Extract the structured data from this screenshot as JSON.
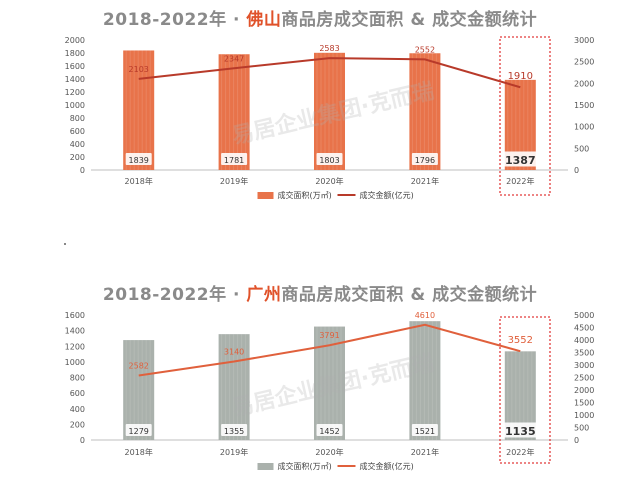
{
  "chart_data": [
    {
      "type": "bar",
      "title": {
        "prefix": "2018-2022年 · ",
        "city": "佛山",
        "suffix": "商品房成交面积 & 成交金额统计"
      },
      "categories": [
        "2018年",
        "2019年",
        "2020年",
        "2021年",
        "2022年"
      ],
      "series": [
        {
          "name": "成交面积(万㎡)",
          "type": "bar",
          "axis": "left",
          "color": "#e8734a",
          "values": [
            1839,
            1781,
            1803,
            1796,
            1387
          ]
        },
        {
          "name": "成交金额(亿元)",
          "type": "line",
          "axis": "right",
          "color": "#b83a2a",
          "values": [
            2103,
            2347,
            2583,
            2552,
            1910
          ]
        }
      ],
      "y_left": {
        "min": 0,
        "max": 2000,
        "ticks": [
          0,
          200,
          400,
          600,
          800,
          1000,
          1200,
          1400,
          1600,
          1800,
          2000
        ]
      },
      "y_right": {
        "min": 0,
        "max": 3000,
        "ticks": [
          0,
          500,
          1000,
          1500,
          2000,
          2500,
          3000
        ]
      },
      "highlight_category": "2022年",
      "highlight_color": "#e23b3b",
      "bar_label_color": "#333333",
      "line_label_color": "#b83a2a",
      "watermark": "易居企业集团·克而瑞",
      "legend_position": "bottom"
    },
    {
      "type": "bar",
      "title": {
        "prefix": "2018-2022年 · ",
        "city": "广州",
        "suffix": "商品房成交面积 & 成交金额统计"
      },
      "categories": [
        "2018年",
        "2019年",
        "2020年",
        "2021年",
        "2022年"
      ],
      "series": [
        {
          "name": "成交面积(万㎡)",
          "type": "bar",
          "axis": "left",
          "color": "#aab1ac",
          "values": [
            1279,
            1355,
            1452,
            1521,
            1135
          ]
        },
        {
          "name": "成交金额(亿元)",
          "type": "line",
          "axis": "right",
          "color": "#e0603c",
          "values": [
            2582,
            3140,
            3791,
            4610,
            3552
          ]
        }
      ],
      "y_left": {
        "min": 0,
        "max": 1600,
        "ticks": [
          0,
          200,
          400,
          600,
          800,
          1000,
          1200,
          1400,
          1600
        ]
      },
      "y_right": {
        "min": 0,
        "max": 5000,
        "ticks": [
          0,
          500,
          1000,
          1500,
          2000,
          2500,
          3000,
          3500,
          4000,
          4500,
          5000
        ]
      },
      "highlight_category": "2022年",
      "highlight_color": "#e23b3b",
      "bar_label_color": "#333333",
      "line_label_color": "#e0603c",
      "watermark": "易居企业集团·克而瑞",
      "legend_position": "bottom"
    }
  ]
}
